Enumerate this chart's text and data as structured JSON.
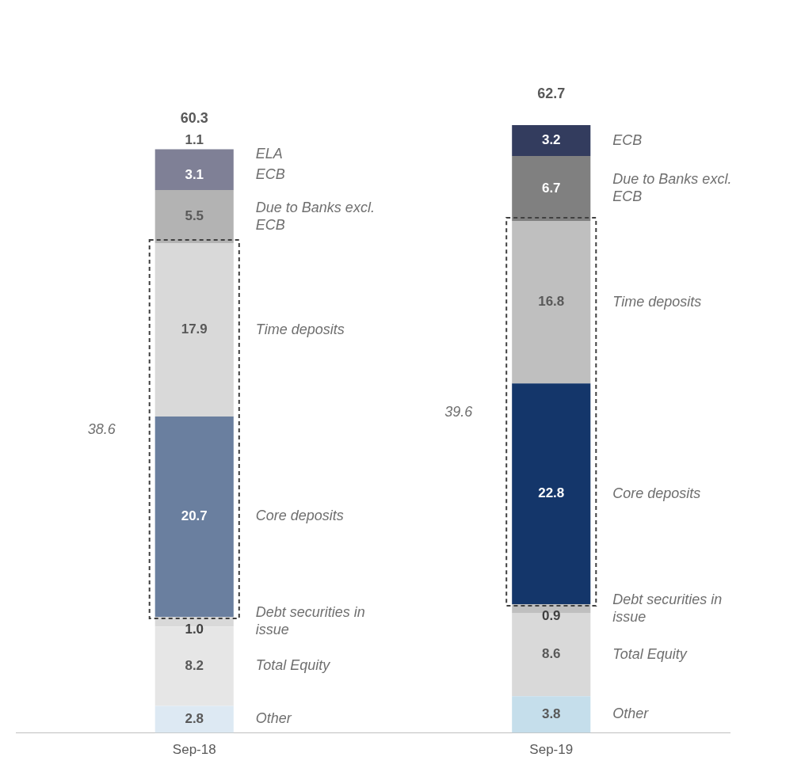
{
  "chart_data": {
    "type": "bar",
    "stacked": true,
    "categories": [
      "Sep-18",
      "Sep-19"
    ],
    "legend": false,
    "grid": false,
    "series": [
      {
        "name": "Other",
        "colors": [
          "#dde9f3",
          "#c5deeb"
        ],
        "values": [
          2.8,
          3.8
        ],
        "value_labels": [
          "2.8",
          "3.8"
        ]
      },
      {
        "name": "Total Equity",
        "colors": [
          "#e6e6e6",
          "#d9d9d9"
        ],
        "values": [
          8.2,
          8.6
        ],
        "value_labels": [
          "8.2",
          "8.6"
        ]
      },
      {
        "name": "Debt securities in issue",
        "colors": [
          "#d9d9d9",
          "#bfbfbf"
        ],
        "values": [
          1.0,
          0.9
        ],
        "value_labels": [
          "1.0",
          "0.9"
        ]
      },
      {
        "name": "Core deposits",
        "colors": [
          "#6a7f9f",
          "#14366a"
        ],
        "values": [
          20.7,
          22.8
        ],
        "value_labels": [
          "20.7",
          "22.8"
        ]
      },
      {
        "name": "Time deposits",
        "colors": [
          "#d9d9d9",
          "#bfbfbf"
        ],
        "values": [
          17.9,
          16.8
        ],
        "value_labels": [
          "17.9",
          "16.8"
        ]
      },
      {
        "name": "Due to Banks excl. ECB",
        "colors": [
          "#b3b3b3",
          "#808080"
        ],
        "values": [
          5.5,
          6.7
        ],
        "value_labels": [
          "5.5",
          "6.7"
        ]
      },
      {
        "name": "ECB",
        "colors": [
          "#7f8096",
          "#333c5e"
        ],
        "values": [
          3.1,
          3.2
        ],
        "value_labels": [
          "3.1",
          "3.2"
        ]
      },
      {
        "name": "ELA",
        "colors": [
          "#7f8096",
          null
        ],
        "values": [
          1.1,
          null
        ],
        "value_labels": [
          "1.1",
          null
        ]
      }
    ],
    "totals": [
      "60.3",
      "62.7"
    ],
    "annotations": [
      "38.6",
      "39.6"
    ]
  }
}
